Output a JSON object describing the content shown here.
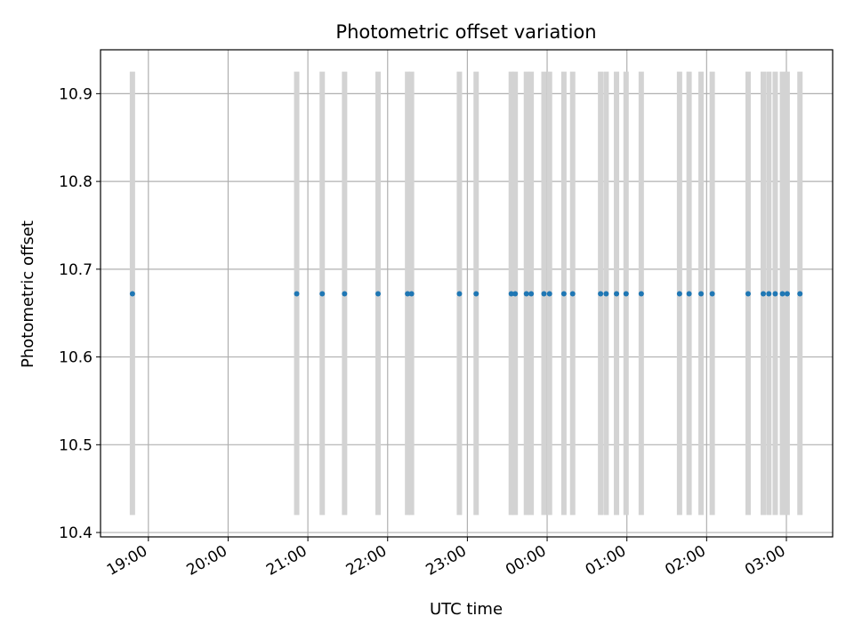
{
  "chart_data": {
    "type": "scatter",
    "title": "Photometric offset variation",
    "xlabel": "UTC time",
    "ylabel": "Photometric offset",
    "ylim": [
      10.395,
      10.95
    ],
    "xlim_hours": [
      18.4,
      27.58
    ],
    "grid": true,
    "x_ticks": [
      {
        "hour": 19,
        "label": "19:00"
      },
      {
        "hour": 20,
        "label": "20:00"
      },
      {
        "hour": 21,
        "label": "21:00"
      },
      {
        "hour": 22,
        "label": "22:00"
      },
      {
        "hour": 23,
        "label": "23:00"
      },
      {
        "hour": 24,
        "label": "00:00"
      },
      {
        "hour": 25,
        "label": "01:00"
      },
      {
        "hour": 26,
        "label": "02:00"
      },
      {
        "hour": 27,
        "label": "03:00"
      }
    ],
    "y_ticks": [
      {
        "value": 10.4,
        "label": "10.4"
      },
      {
        "value": 10.5,
        "label": "10.5"
      },
      {
        "value": 10.6,
        "label": "10.6"
      },
      {
        "value": 10.7,
        "label": "10.7"
      },
      {
        "value": 10.8,
        "label": "10.8"
      },
      {
        "value": 10.9,
        "label": "10.9"
      }
    ],
    "band_range": [
      10.42,
      10.925
    ],
    "point_value": 10.672,
    "observation_times_hours": [
      18.8,
      20.86,
      21.18,
      21.46,
      21.88,
      22.25,
      22.3,
      22.9,
      23.11,
      23.55,
      23.6,
      23.74,
      23.8,
      23.96,
      24.03,
      24.21,
      24.32,
      24.67,
      24.74,
      24.87,
      24.99,
      25.18,
      25.66,
      25.78,
      25.93,
      26.07,
      26.52,
      26.71,
      26.78,
      26.86,
      26.95,
      27.01,
      27.17
    ],
    "series_color": "#1f77b4",
    "band_color": "#d3d3d3"
  }
}
